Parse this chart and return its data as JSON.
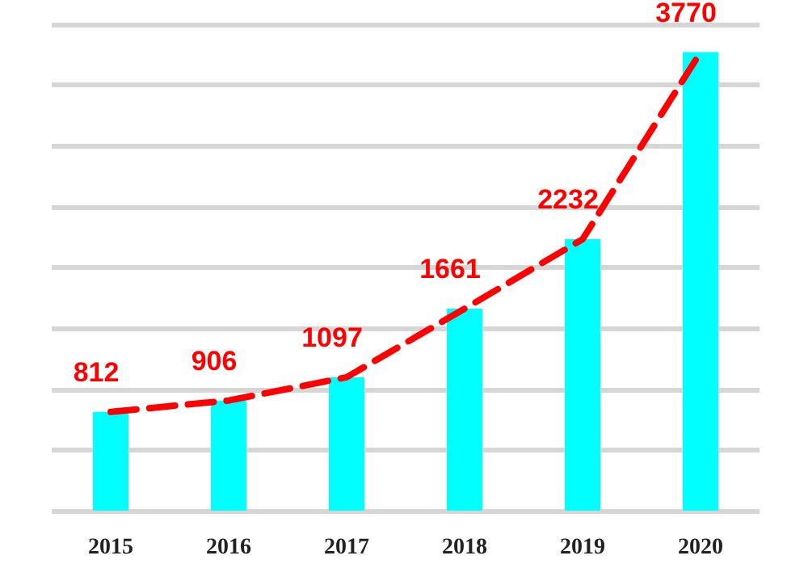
{
  "chart_data": {
    "type": "bar",
    "categories": [
      "2015",
      "2016",
      "2017",
      "2018",
      "2019",
      "2020"
    ],
    "series": [
      {
        "color": "#00ffff",
        "values": [
          812,
          906,
          1097,
          1661,
          2232,
          3770
        ],
        "value_labels": [
          "812",
          "906",
          "1097",
          "1661",
          "2232",
          "3770"
        ]
      },
      {
        "type": "line",
        "color": "#ff0000",
        "line_style": "dashed",
        "marker": "none",
        "values": [
          812,
          906,
          1097,
          1661,
          2232,
          3770
        ]
      }
    ],
    "ylim": [
      0,
      4000
    ],
    "yticks": [
      {
        "value": 0,
        "label": null
      },
      {
        "value": 500,
        "label": null
      },
      {
        "value": 1000,
        "label": null
      },
      {
        "value": 1500,
        "label": null
      },
      {
        "value": 2000,
        "label": null
      },
      {
        "value": 2500,
        "label": null
      },
      {
        "value": 3000,
        "label": null
      },
      {
        "value": 3500,
        "label": null
      },
      {
        "value": 4000,
        "label": null
      }
    ],
    "grid": "y",
    "tick_labels": "x"
  }
}
